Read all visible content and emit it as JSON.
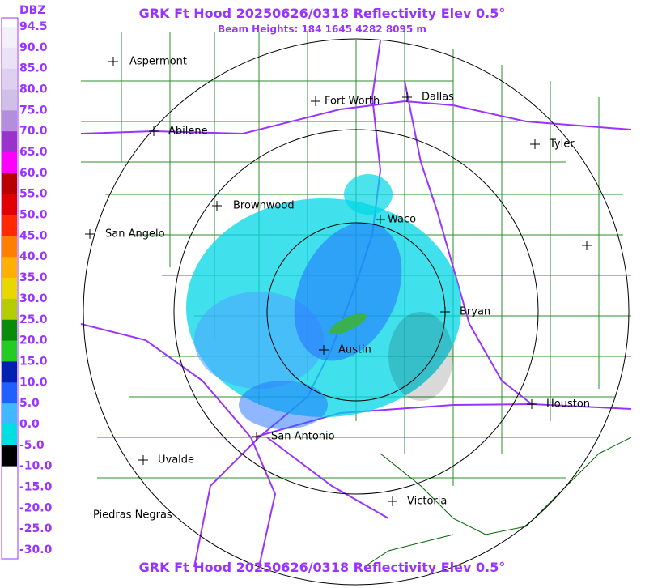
{
  "header": {
    "title": "GRK Ft Hood 20250626/0318 Reflectivity Elev 0.5°",
    "subtitle": "Beam Heights: 184 1645 4282 8095 m"
  },
  "footer": {
    "title": "GRK Ft Hood 20250626/0318 Reflectivity Elev 0.5°"
  },
  "legend": {
    "unit": "DBZ",
    "labels": [
      "94.5",
      "90.0",
      "85.0",
      "80.0",
      "75.0",
      "70.0",
      "65.0",
      "60.0",
      "55.0",
      "50.0",
      "45.0",
      "40.0",
      "35.0",
      "30.0",
      "25.0",
      "20.0",
      "15.0",
      "10.0",
      "5.0",
      "0.0",
      "-5.0",
      "-10.0",
      "-15.0",
      "-20.0",
      "-25.0",
      "-30.0"
    ]
  },
  "cities": [
    {
      "name": "Aspermont"
    },
    {
      "name": "Fort Worth"
    },
    {
      "name": "Dallas"
    },
    {
      "name": "Abilene"
    },
    {
      "name": "Tyler"
    },
    {
      "name": "Brownwood"
    },
    {
      "name": "Waco"
    },
    {
      "name": "San Angelo"
    },
    {
      "name": "Bryan"
    },
    {
      "name": "Austin"
    },
    {
      "name": "Houston"
    },
    {
      "name": "San Antonio"
    },
    {
      "name": "Uvalde"
    },
    {
      "name": "Victoria"
    },
    {
      "name": "Piedras Negras"
    }
  ]
}
